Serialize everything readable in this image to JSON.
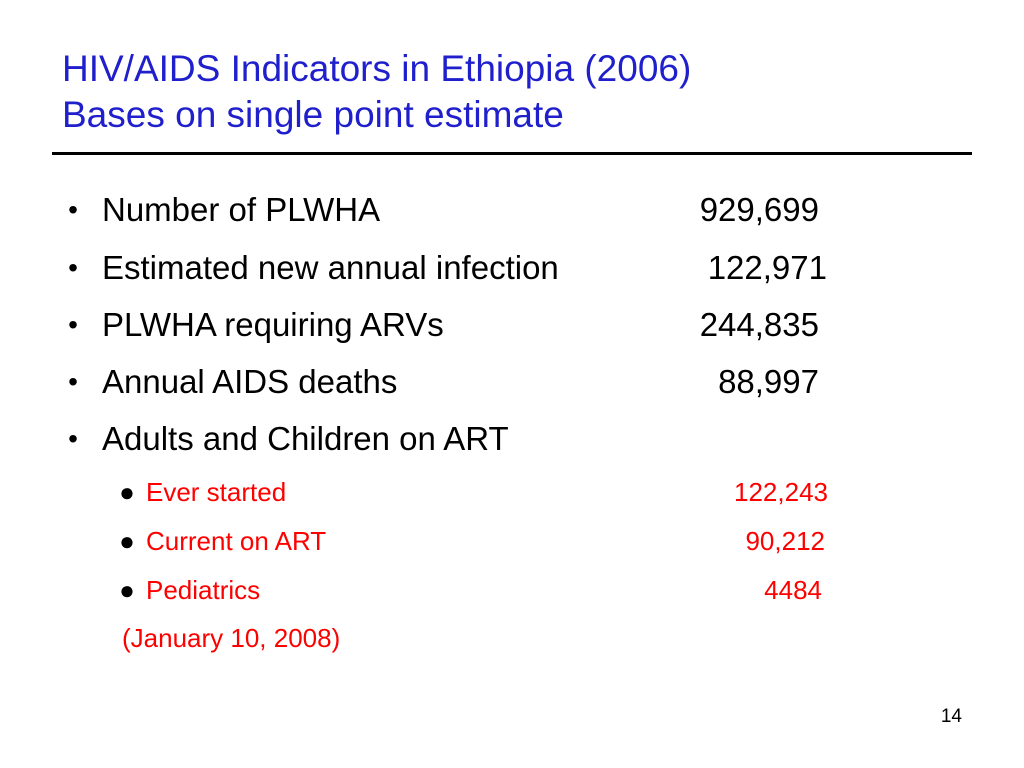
{
  "slide": {
    "title_line1": "HIV/AIDS Indicators in Ethiopia (2006)",
    "title_line2": "Bases on single point estimate",
    "bullets": [
      {
        "bullet": "•",
        "label": "Number of PLWHA",
        "value": "929,699"
      },
      {
        "bullet": "•",
        "label": "Estimated new annual infection",
        "value": "122,971"
      },
      {
        "bullet": "•",
        "label": "PLWHA requiring ARVs",
        "value": "244,835"
      },
      {
        "bullet": "•",
        "label": "Annual AIDS deaths",
        "value": "88,997"
      },
      {
        "bullet": "•",
        "label": "Adults and Children on ART",
        "value": ""
      }
    ],
    "sub_bullets": [
      {
        "bullet": "●",
        "label": "Ever started",
        "value": "122,243"
      },
      {
        "bullet": "●",
        "label": "Current on ART",
        "value": "90,212"
      },
      {
        "bullet": "●",
        "label": "Pediatrics",
        "value": "4484"
      }
    ],
    "note": "(January 10, 2008)",
    "page_number": "14",
    "colors": {
      "title": "#1f1fcc",
      "body_text": "#000000",
      "sub_text": "#ff0000",
      "rule": "#000000"
    }
  }
}
